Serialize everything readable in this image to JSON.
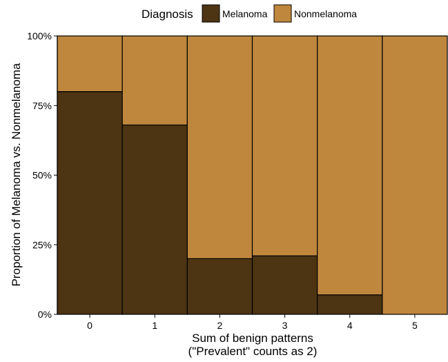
{
  "chart_data": {
    "type": "bar",
    "stacked": true,
    "normalized": true,
    "legend": {
      "title": "Diagnosis",
      "position": "top",
      "entries": [
        "Melanoma",
        "Nonmelanoma"
      ]
    },
    "xlabel_lines": [
      "Sum of benign patterns",
      "(\"Prevalent\" counts as 2)"
    ],
    "ylabel": "Proportion of Melanoma vs. Nonmelanoma",
    "categories": [
      "0",
      "1",
      "2",
      "3",
      "4",
      "5"
    ],
    "series": [
      {
        "name": "Melanoma",
        "color": "#4d3413",
        "values": [
          0.8,
          0.68,
          0.2,
          0.21,
          0.07,
          0.0
        ]
      },
      {
        "name": "Nonmelanoma",
        "color": "#bf873d",
        "values": [
          0.2,
          0.32,
          0.8,
          0.79,
          0.93,
          1.0
        ]
      }
    ],
    "ylim": [
      0,
      1
    ],
    "yticks": [
      0,
      0.25,
      0.5,
      0.75,
      1.0
    ],
    "ytick_labels": [
      "0%",
      "25%",
      "50%",
      "75%",
      "100%"
    ],
    "grid": false
  }
}
